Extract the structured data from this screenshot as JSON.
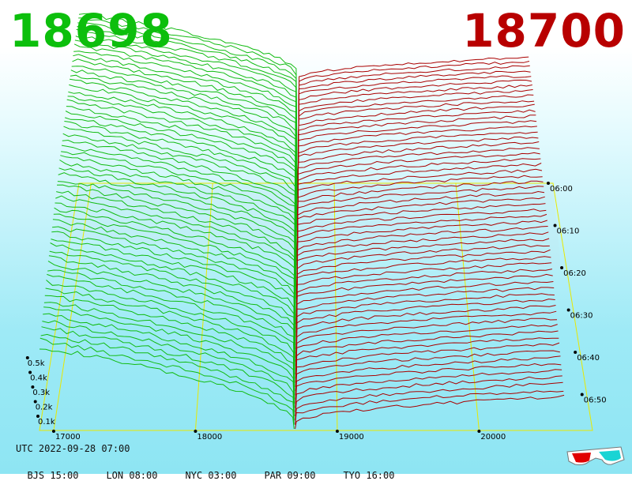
{
  "prices": {
    "bid": "18698",
    "ask": "18700",
    "bid_color": "#0cbf0c",
    "ask_color": "#b80000"
  },
  "footer": {
    "utc": "UTC 2022-09-28 07:00",
    "zones": [
      "BJS 15:00",
      "LON 08:00",
      "NYC 03:00",
      "PAR 09:00",
      "TYO 16:00"
    ]
  },
  "chart_data": {
    "type": "area",
    "subtype": "3d-order-book-depth",
    "x_ticks": [
      17000,
      18000,
      19000,
      20000
    ],
    "xlim": [
      16900,
      20800
    ],
    "mid_price": 18699,
    "y_ticks": [
      "0.1k",
      "0.2k",
      "0.3k",
      "0.4k",
      "0.5k"
    ],
    "time_ticks": [
      "06:00",
      "06:10",
      "06:20",
      "06:30",
      "06:40",
      "06:50"
    ],
    "bid_color": "#11bb11",
    "ask_color": "#aa0000",
    "grid": true,
    "grid_color": "#e8e800",
    "snapshot_count": 60
  },
  "icons": {
    "glasses": "red-cyan-3d-glasses-icon"
  }
}
